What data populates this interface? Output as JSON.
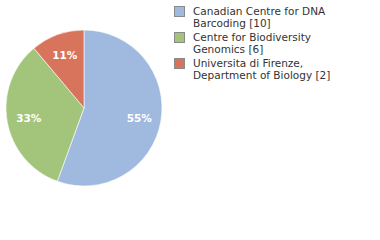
{
  "chart_data": {
    "type": "pie",
    "categories": [
      "Canadian Centre for DNA Barcoding [10]",
      "Centre for Biodiversity Genomics [6]",
      "Universita di Firenze, Department of Biology [2]"
    ],
    "values": [
      55,
      33,
      11
    ],
    "value_labels": [
      "55%",
      "33%",
      "11%"
    ],
    "colors": [
      "#9fb9df",
      "#a3c57b",
      "#d9745c"
    ],
    "data_labels": true,
    "legend": "top-right"
  }
}
